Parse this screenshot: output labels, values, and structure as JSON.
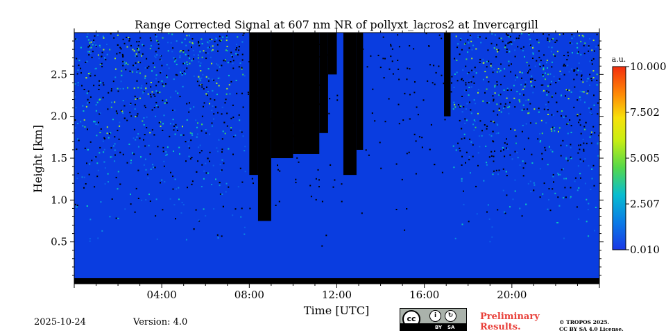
{
  "chart_data": {
    "type": "heatmap",
    "title": "Range Corrected Signal at 607 nm NR of pollyxt_lacros2 at Invercargill",
    "xlabel": "Time [UTC]",
    "ylabel": "Height [km]",
    "xlim": [
      0,
      24
    ],
    "ylim": [
      0,
      3.0
    ],
    "x_tick_labels": [
      "04:00",
      "08:00",
      "12:00",
      "16:00",
      "20:00"
    ],
    "x_ticks": [
      4,
      8,
      12,
      16,
      20
    ],
    "y_tick_labels": [
      "0.5",
      "1.0",
      "1.5",
      "2.0",
      "2.5"
    ],
    "y_ticks": [
      0.5,
      1.0,
      1.5,
      2.0,
      2.5
    ],
    "colorbar": {
      "unit": "a.u.",
      "range": [
        0.01,
        10.0
      ],
      "tick_labels": [
        "0.010",
        "2.507",
        "5.005",
        "7.502",
        "10.000"
      ],
      "colormap": "jet"
    },
    "signal_description": {
      "low_noise_layer_top_km": 0.5,
      "daytime_low_signal_hours": [
        7.8,
        17.3
      ],
      "clear_top_hours": [
        0,
        5.5
      ]
    }
  },
  "footer": {
    "date": "2025-10-24",
    "version": "Version: 4.0",
    "preliminary_line1": "Preliminary",
    "preliminary_line2": "Results.",
    "copyright_line1": "© TROPOS 2025.",
    "copyright_line2": "CC BY SA 4.0 License.",
    "license_badge": {
      "cc": "cc",
      "by": "BY",
      "sa": "SA"
    }
  },
  "colors": {
    "background_blue": "#0a3de0",
    "noise_black": "#000000",
    "warm_accent": "#e8403a"
  }
}
